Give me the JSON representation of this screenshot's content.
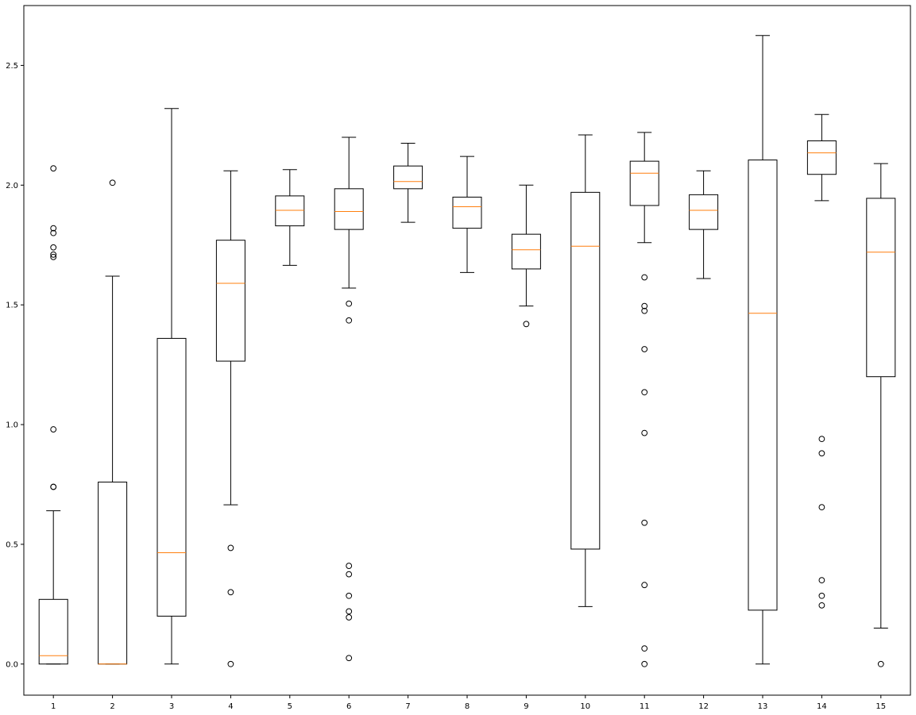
{
  "chart_data": {
    "type": "boxplot",
    "title": "",
    "xlabel": "",
    "ylabel": "",
    "ylim": [
      -0.13,
      2.75
    ],
    "yticks": [
      0.0,
      0.5,
      1.0,
      1.5,
      2.0,
      2.5
    ],
    "ytick_labels": [
      "0.0",
      "0.5",
      "1.0",
      "1.5",
      "2.0",
      "2.5"
    ],
    "grid": false,
    "legend": "none",
    "colors": {
      "box": "#000000",
      "median": "#ff7f0e",
      "whisker": "#000000",
      "flier": "#000000"
    },
    "categories": [
      "1",
      "2",
      "3",
      "4",
      "5",
      "6",
      "7",
      "8",
      "9",
      "10",
      "11",
      "12",
      "13",
      "14",
      "15"
    ],
    "boxes": [
      {
        "label": "1",
        "whisker_low": 0.0,
        "q1": 0.0,
        "median": 0.035,
        "q3": 0.27,
        "whisker_high": 0.64,
        "fliers": [
          0.74,
          0.74,
          0.98,
          1.7,
          1.71,
          1.74,
          1.8,
          1.82,
          2.07
        ]
      },
      {
        "label": "2",
        "whisker_low": 0.0,
        "q1": 0.0,
        "median": 0.0,
        "q3": 0.76,
        "whisker_high": 1.62,
        "fliers": [
          2.01
        ]
      },
      {
        "label": "3",
        "whisker_low": 0.0,
        "q1": 0.2,
        "median": 0.465,
        "q3": 1.36,
        "whisker_high": 2.32,
        "fliers": []
      },
      {
        "label": "4",
        "whisker_low": 0.665,
        "q1": 1.265,
        "median": 1.59,
        "q3": 1.77,
        "whisker_high": 2.06,
        "fliers": [
          0.0,
          0.3,
          0.485
        ]
      },
      {
        "label": "5",
        "whisker_low": 1.665,
        "q1": 1.83,
        "median": 1.895,
        "q3": 1.955,
        "whisker_high": 2.065,
        "fliers": []
      },
      {
        "label": "6",
        "whisker_low": 1.57,
        "q1": 1.815,
        "median": 1.89,
        "q3": 1.985,
        "whisker_high": 2.2,
        "fliers": [
          0.025,
          0.195,
          0.22,
          0.285,
          0.375,
          0.41,
          1.435,
          1.505
        ]
      },
      {
        "label": "7",
        "whisker_low": 1.845,
        "q1": 1.985,
        "median": 2.015,
        "q3": 2.08,
        "whisker_high": 2.175,
        "fliers": []
      },
      {
        "label": "8",
        "whisker_low": 1.635,
        "q1": 1.82,
        "median": 1.91,
        "q3": 1.95,
        "whisker_high": 2.12,
        "fliers": []
      },
      {
        "label": "9",
        "whisker_low": 1.495,
        "q1": 1.65,
        "median": 1.73,
        "q3": 1.795,
        "whisker_high": 2.0,
        "fliers": [
          1.42
        ]
      },
      {
        "label": "10",
        "whisker_low": 0.24,
        "q1": 0.48,
        "median": 1.745,
        "q3": 1.97,
        "whisker_high": 2.21,
        "fliers": []
      },
      {
        "label": "11",
        "whisker_low": 1.76,
        "q1": 1.915,
        "median": 2.05,
        "q3": 2.1,
        "whisker_high": 2.22,
        "fliers": [
          0.0,
          0.065,
          0.33,
          0.59,
          0.965,
          1.135,
          1.315,
          1.475,
          1.495,
          1.615
        ]
      },
      {
        "label": "12",
        "whisker_low": 1.61,
        "q1": 1.815,
        "median": 1.895,
        "q3": 1.96,
        "whisker_high": 2.06,
        "fliers": []
      },
      {
        "label": "13",
        "whisker_low": 0.0,
        "q1": 0.225,
        "median": 1.465,
        "q3": 2.105,
        "whisker_high": 2.625,
        "fliers": []
      },
      {
        "label": "14",
        "whisker_low": 1.935,
        "q1": 2.045,
        "median": 2.135,
        "q3": 2.185,
        "whisker_high": 2.295,
        "fliers": [
          0.245,
          0.285,
          0.35,
          0.655,
          0.88,
          0.94
        ]
      },
      {
        "label": "15",
        "whisker_low": 0.15,
        "q1": 1.2,
        "median": 1.72,
        "q3": 1.945,
        "whisker_high": 2.09,
        "fliers": [
          0.0
        ]
      }
    ]
  }
}
